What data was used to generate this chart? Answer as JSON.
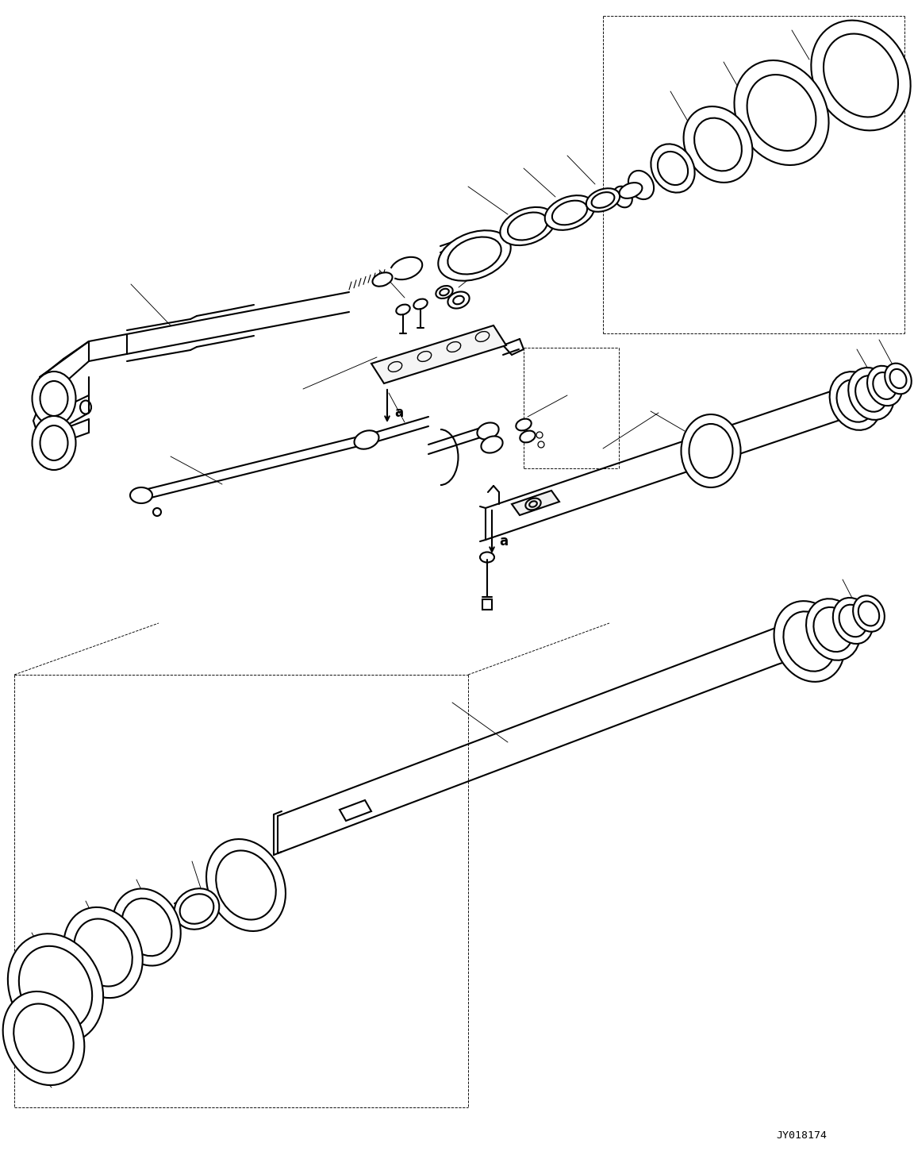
{
  "background_color": "#ffffff",
  "line_color": "#000000",
  "lw_main": 1.3,
  "lw_thin": 0.65,
  "lw_part": 1.5,
  "lw_thick": 2.0,
  "watermark": "JY018174",
  "figsize": [
    11.52,
    14.55
  ],
  "dpi": 100
}
